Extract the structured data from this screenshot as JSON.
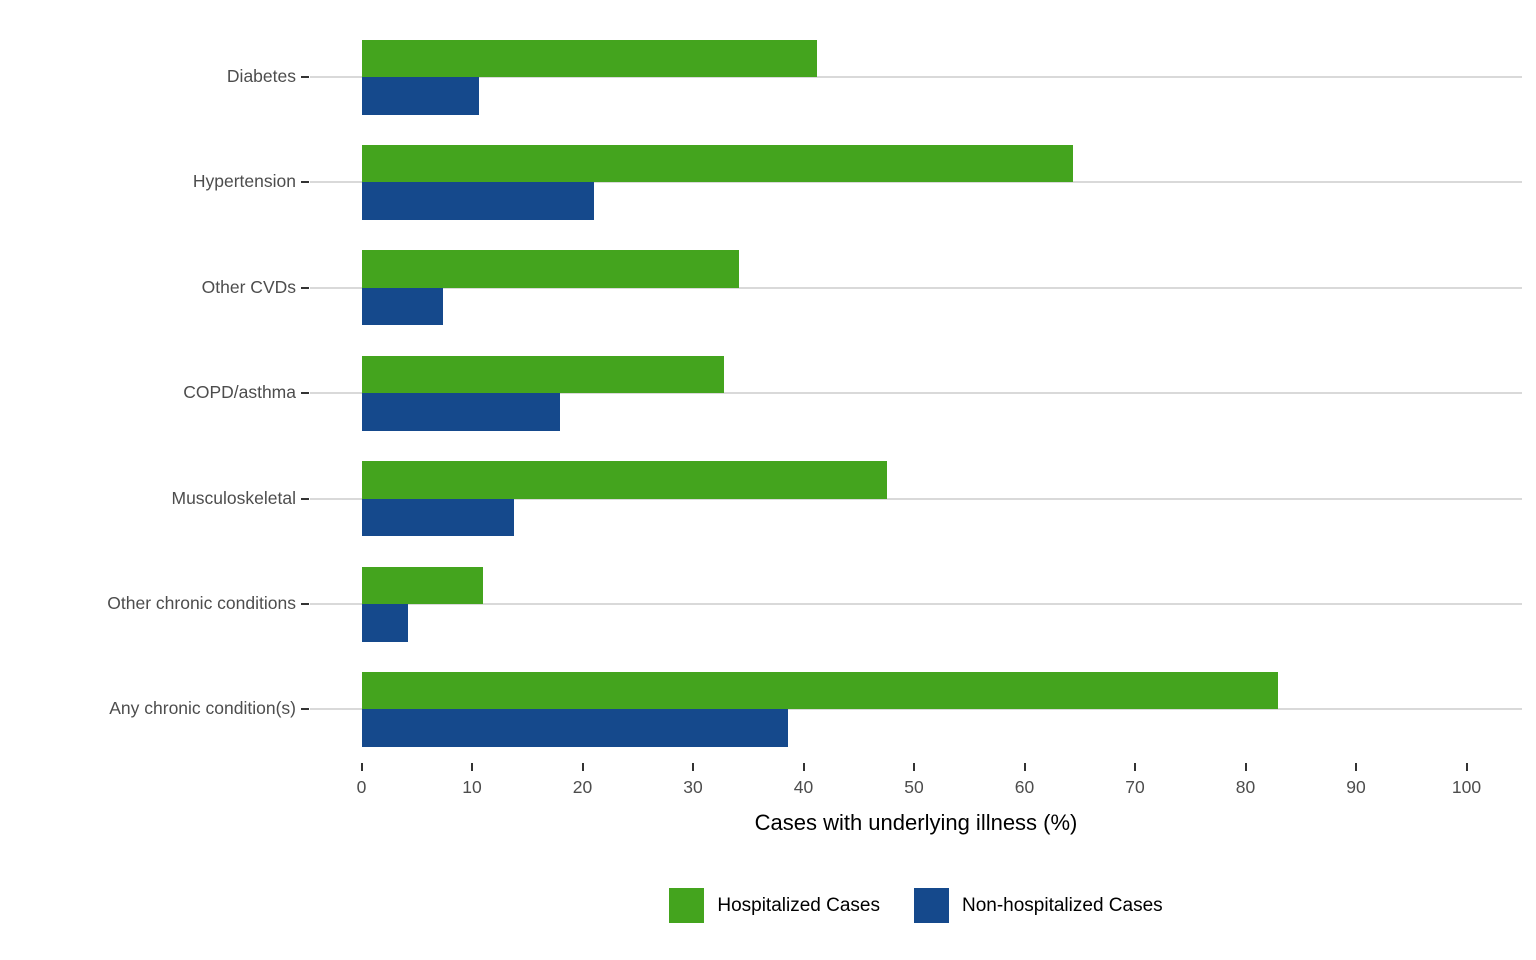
{
  "chart_data": {
    "type": "bar",
    "orientation": "horizontal",
    "title": "",
    "xlabel": "Cases with underlying illness (%)",
    "ylabel": "",
    "xlim": [
      0,
      100
    ],
    "xticks": [
      0,
      10,
      20,
      30,
      40,
      50,
      60,
      70,
      80,
      90,
      100
    ],
    "grid": "horizontal-major-only",
    "legend_position": "bottom-center",
    "categories": [
      "Diabetes",
      "Hypertension",
      "Other CVDs",
      "COPD/asthma",
      "Musculoskeletal",
      "Other chronic conditions",
      "Any chronic condition(s)"
    ],
    "series": [
      {
        "name": "Hospitalized Cases",
        "color": "#44a41e",
        "values": [
          41.2,
          64.4,
          34.2,
          32.8,
          47.6,
          11.0,
          82.9
        ]
      },
      {
        "name": "Non-hospitalized Cases",
        "color": "#15498c",
        "values": [
          10.6,
          21.0,
          7.4,
          18.0,
          13.8,
          4.2,
          38.6
        ]
      }
    ],
    "colors": {
      "gridline": "#d9d9d9",
      "tick": "#333333",
      "axis_text": "#4d4d4d",
      "axis_title": "#000000",
      "background": "#ffffff"
    }
  }
}
